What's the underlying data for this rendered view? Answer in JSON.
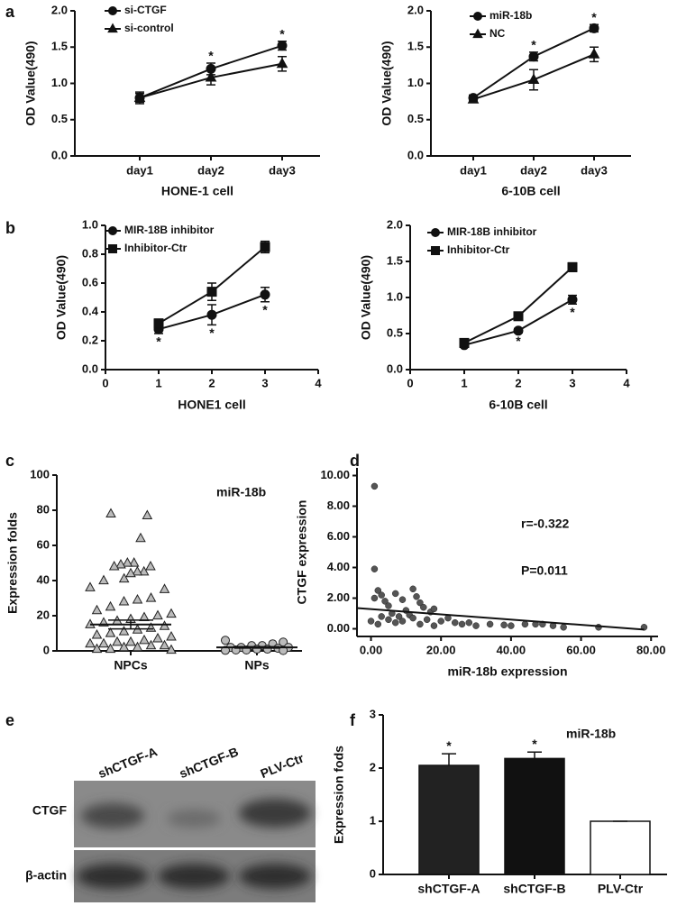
{
  "chart_data": [
    {
      "type": "line",
      "panel": "a",
      "categories": [
        "day1",
        "day2",
        "day3"
      ],
      "xlabel": "HONE-1 cell",
      "ylabel": "OD Value(490)",
      "ylim": [
        0,
        2
      ],
      "yticks": [
        {
          "value": 0,
          "label": "0.0"
        },
        {
          "value": 0.5,
          "label": "0.5"
        },
        {
          "value": 1,
          "label": "1.0"
        },
        {
          "value": 1.5,
          "label": "1.5"
        },
        {
          "value": 2,
          "label": "2.0"
        }
      ],
      "series": [
        {
          "name": "si-CTGF",
          "marker": "circle",
          "color": "#111",
          "values": [
            0.8,
            1.2,
            1.52
          ],
          "errors": [
            0.08,
            0.08,
            0.06
          ]
        },
        {
          "name": "si-control",
          "marker": "triangle",
          "color": "#111",
          "values": [
            0.8,
            1.08,
            1.27
          ],
          "errors": [
            0.06,
            0.1,
            0.1
          ]
        }
      ],
      "significance": [
        null,
        "*",
        "*"
      ]
    },
    {
      "type": "line",
      "categories": [
        "day1",
        "day2",
        "day3"
      ],
      "xlabel": "6-10B cell",
      "ylabel": "OD Value(490)",
      "ylim": [
        0,
        2
      ],
      "yticks": [
        {
          "value": 0,
          "label": "0.0"
        },
        {
          "value": 0.5,
          "label": "0.5"
        },
        {
          "value": 1,
          "label": "1.0"
        },
        {
          "value": 1.5,
          "label": "1.5"
        },
        {
          "value": 2,
          "label": "2.0"
        }
      ],
      "series": [
        {
          "name": "miR-18b",
          "marker": "circle",
          "color": "#111",
          "values": [
            0.8,
            1.37,
            1.76
          ],
          "errors": [
            0.04,
            0.06,
            0.05
          ]
        },
        {
          "name": "NC",
          "marker": "triangle",
          "color": "#111",
          "values": [
            0.78,
            1.05,
            1.4
          ],
          "errors": [
            0.04,
            0.14,
            0.1
          ]
        }
      ],
      "significance": [
        null,
        "*",
        "*"
      ]
    },
    {
      "type": "line",
      "panel": "b",
      "x": [
        1,
        2,
        3
      ],
      "xlim": [
        0,
        4
      ],
      "xticks": [
        0,
        1,
        2,
        3,
        4
      ],
      "xlabel": "HONE1 cell",
      "ylabel": "OD Value(490)",
      "ylim": [
        0,
        1
      ],
      "yticks": [
        {
          "value": 0,
          "label": "0.0"
        },
        {
          "value": 0.2,
          "label": "0.2"
        },
        {
          "value": 0.4,
          "label": "0.4"
        },
        {
          "value": 0.6,
          "label": "0.6"
        },
        {
          "value": 0.8,
          "label": "0.8"
        },
        {
          "value": 1,
          "label": "1.0"
        }
      ],
      "series": [
        {
          "name": "MIR-18B inhibitor",
          "marker": "circle",
          "color": "#111",
          "values": [
            0.28,
            0.38,
            0.52
          ],
          "errors": [
            0.03,
            0.07,
            0.05
          ]
        },
        {
          "name": "Inhibitor-Ctr",
          "marker": "square",
          "color": "#111",
          "values": [
            0.32,
            0.54,
            0.85
          ],
          "errors": [
            0.03,
            0.06,
            0.04
          ]
        }
      ],
      "significance": [
        "*",
        "*",
        "*"
      ]
    },
    {
      "type": "line",
      "x": [
        1,
        2,
        3
      ],
      "xlim": [
        0,
        4
      ],
      "xticks": [
        0,
        1,
        2,
        3,
        4
      ],
      "xlabel": "6-10B cell",
      "ylabel": "OD Value(490)",
      "ylim": [
        0,
        2
      ],
      "yticks": [
        {
          "value": 0,
          "label": "0.0"
        },
        {
          "value": 0.5,
          "label": "0.5"
        },
        {
          "value": 1,
          "label": "1.0"
        },
        {
          "value": 1.5,
          "label": "1.5"
        },
        {
          "value": 2,
          "label": "2.0"
        }
      ],
      "series": [
        {
          "name": "MIR-18B inhibitor",
          "marker": "circle",
          "color": "#111",
          "values": [
            0.34,
            0.54,
            0.97
          ],
          "errors": [
            0.03,
            0.03,
            0.06
          ]
        },
        {
          "name": "Inhibitor-Ctr",
          "marker": "square",
          "color": "#111",
          "values": [
            0.37,
            0.74,
            1.42
          ],
          "errors": [
            0.03,
            0.05,
            0.06
          ]
        }
      ],
      "significance": [
        null,
        "*",
        "*"
      ]
    },
    {
      "type": "strip",
      "panel": "c",
      "categories": [
        "NPCs",
        "NPs"
      ],
      "ylabel": "Expression folds",
      "annotations": [
        "miR-18b"
      ],
      "ylim": [
        0,
        100
      ],
      "yticks": [
        0,
        20,
        40,
        60,
        80,
        100
      ],
      "markers": [
        "triangle",
        "circle"
      ],
      "values": [
        [
          78,
          77,
          64,
          50,
          50,
          49,
          48,
          48,
          45,
          45,
          44,
          41,
          40,
          36,
          35,
          30,
          29,
          28,
          25,
          23,
          21,
          20,
          19,
          18,
          17,
          16,
          15,
          14,
          13,
          12,
          11,
          10,
          9,
          8,
          7,
          6,
          5,
          5,
          4,
          4,
          3,
          3,
          2,
          2,
          1,
          1,
          0.5
        ],
        [
          6,
          5,
          4,
          3,
          3,
          2,
          2,
          2,
          1.5,
          1,
          1,
          0.5,
          0.5,
          0.3,
          0.2
        ]
      ],
      "means": [
        15,
        2
      ],
      "sem": [
        2.5,
        0.4
      ]
    },
    {
      "type": "scatter",
      "panel": "d",
      "xlabel": "miR-18b expression",
      "ylabel": "CTGF expression",
      "annotations": [
        "r=-0.322",
        "P=0.011"
      ],
      "xlim": [
        -4,
        82
      ],
      "xticks": [
        {
          "value": 0,
          "label": "0.00"
        },
        {
          "value": 20,
          "label": "20.00"
        },
        {
          "value": 40,
          "label": "40.00"
        },
        {
          "value": 60,
          "label": "60.00"
        },
        {
          "value": 80,
          "label": "80.00"
        }
      ],
      "ylim": [
        -0.5,
        10.5
      ],
      "yticks": [
        {
          "value": 0,
          "label": "0.00"
        },
        {
          "value": 2,
          "label": "2.00"
        },
        {
          "value": 4,
          "label": "4.00"
        },
        {
          "value": 6,
          "label": "6.00"
        },
        {
          "value": 8,
          "label": "8.00"
        },
        {
          "value": 10,
          "label": "10.00"
        }
      ],
      "x": [
        1,
        1,
        1,
        2,
        3,
        4,
        5,
        6,
        7,
        8,
        9,
        10,
        11,
        12,
        13,
        14,
        15,
        16,
        17,
        18,
        20,
        22,
        24,
        26,
        28,
        30,
        34,
        38,
        40,
        44,
        47,
        49,
        52,
        55,
        65,
        78,
        0,
        2,
        3,
        5,
        7,
        9,
        12,
        14,
        18
      ],
      "y": [
        9.3,
        3.9,
        2.0,
        2.5,
        2.2,
        1.8,
        1.5,
        1.0,
        2.3,
        0.8,
        1.9,
        1.2,
        0.9,
        2.6,
        2.1,
        1.7,
        1.4,
        0.6,
        1.1,
        1.3,
        0.5,
        0.7,
        0.4,
        0.3,
        0.4,
        0.2,
        0.3,
        0.25,
        0.2,
        0.3,
        0.3,
        0.3,
        0.2,
        0.1,
        0.1,
        0.1,
        0.5,
        0.3,
        0.8,
        0.6,
        0.4,
        0.5,
        0.7,
        0.3,
        0.2
      ],
      "color": "#555",
      "trend": {
        "x": [
          -4,
          78
        ],
        "y": [
          1.35,
          -0.05
        ]
      }
    },
    {
      "type": "bar",
      "panel": "f",
      "categories": [
        "shCTGF-A",
        "shCTGF-B",
        "PLV-Ctr"
      ],
      "ylabel": "Expression fods",
      "annotations": [
        "miR-18b"
      ],
      "ylim": [
        0,
        3
      ],
      "yticks": [
        0,
        1,
        2,
        3
      ],
      "values": [
        2.05,
        2.18,
        1.0
      ],
      "errors": [
        0.22,
        0.12,
        0
      ],
      "colors": [
        "#222",
        "#111",
        "#fff"
      ],
      "significance": [
        "*",
        "*",
        null
      ]
    }
  ],
  "blot": {
    "panel": "e",
    "lanes": [
      "shCTGF-A",
      "shCTGF-B",
      "PLV-Ctr"
    ],
    "rows": [
      "CTGF",
      "β-actin"
    ]
  }
}
